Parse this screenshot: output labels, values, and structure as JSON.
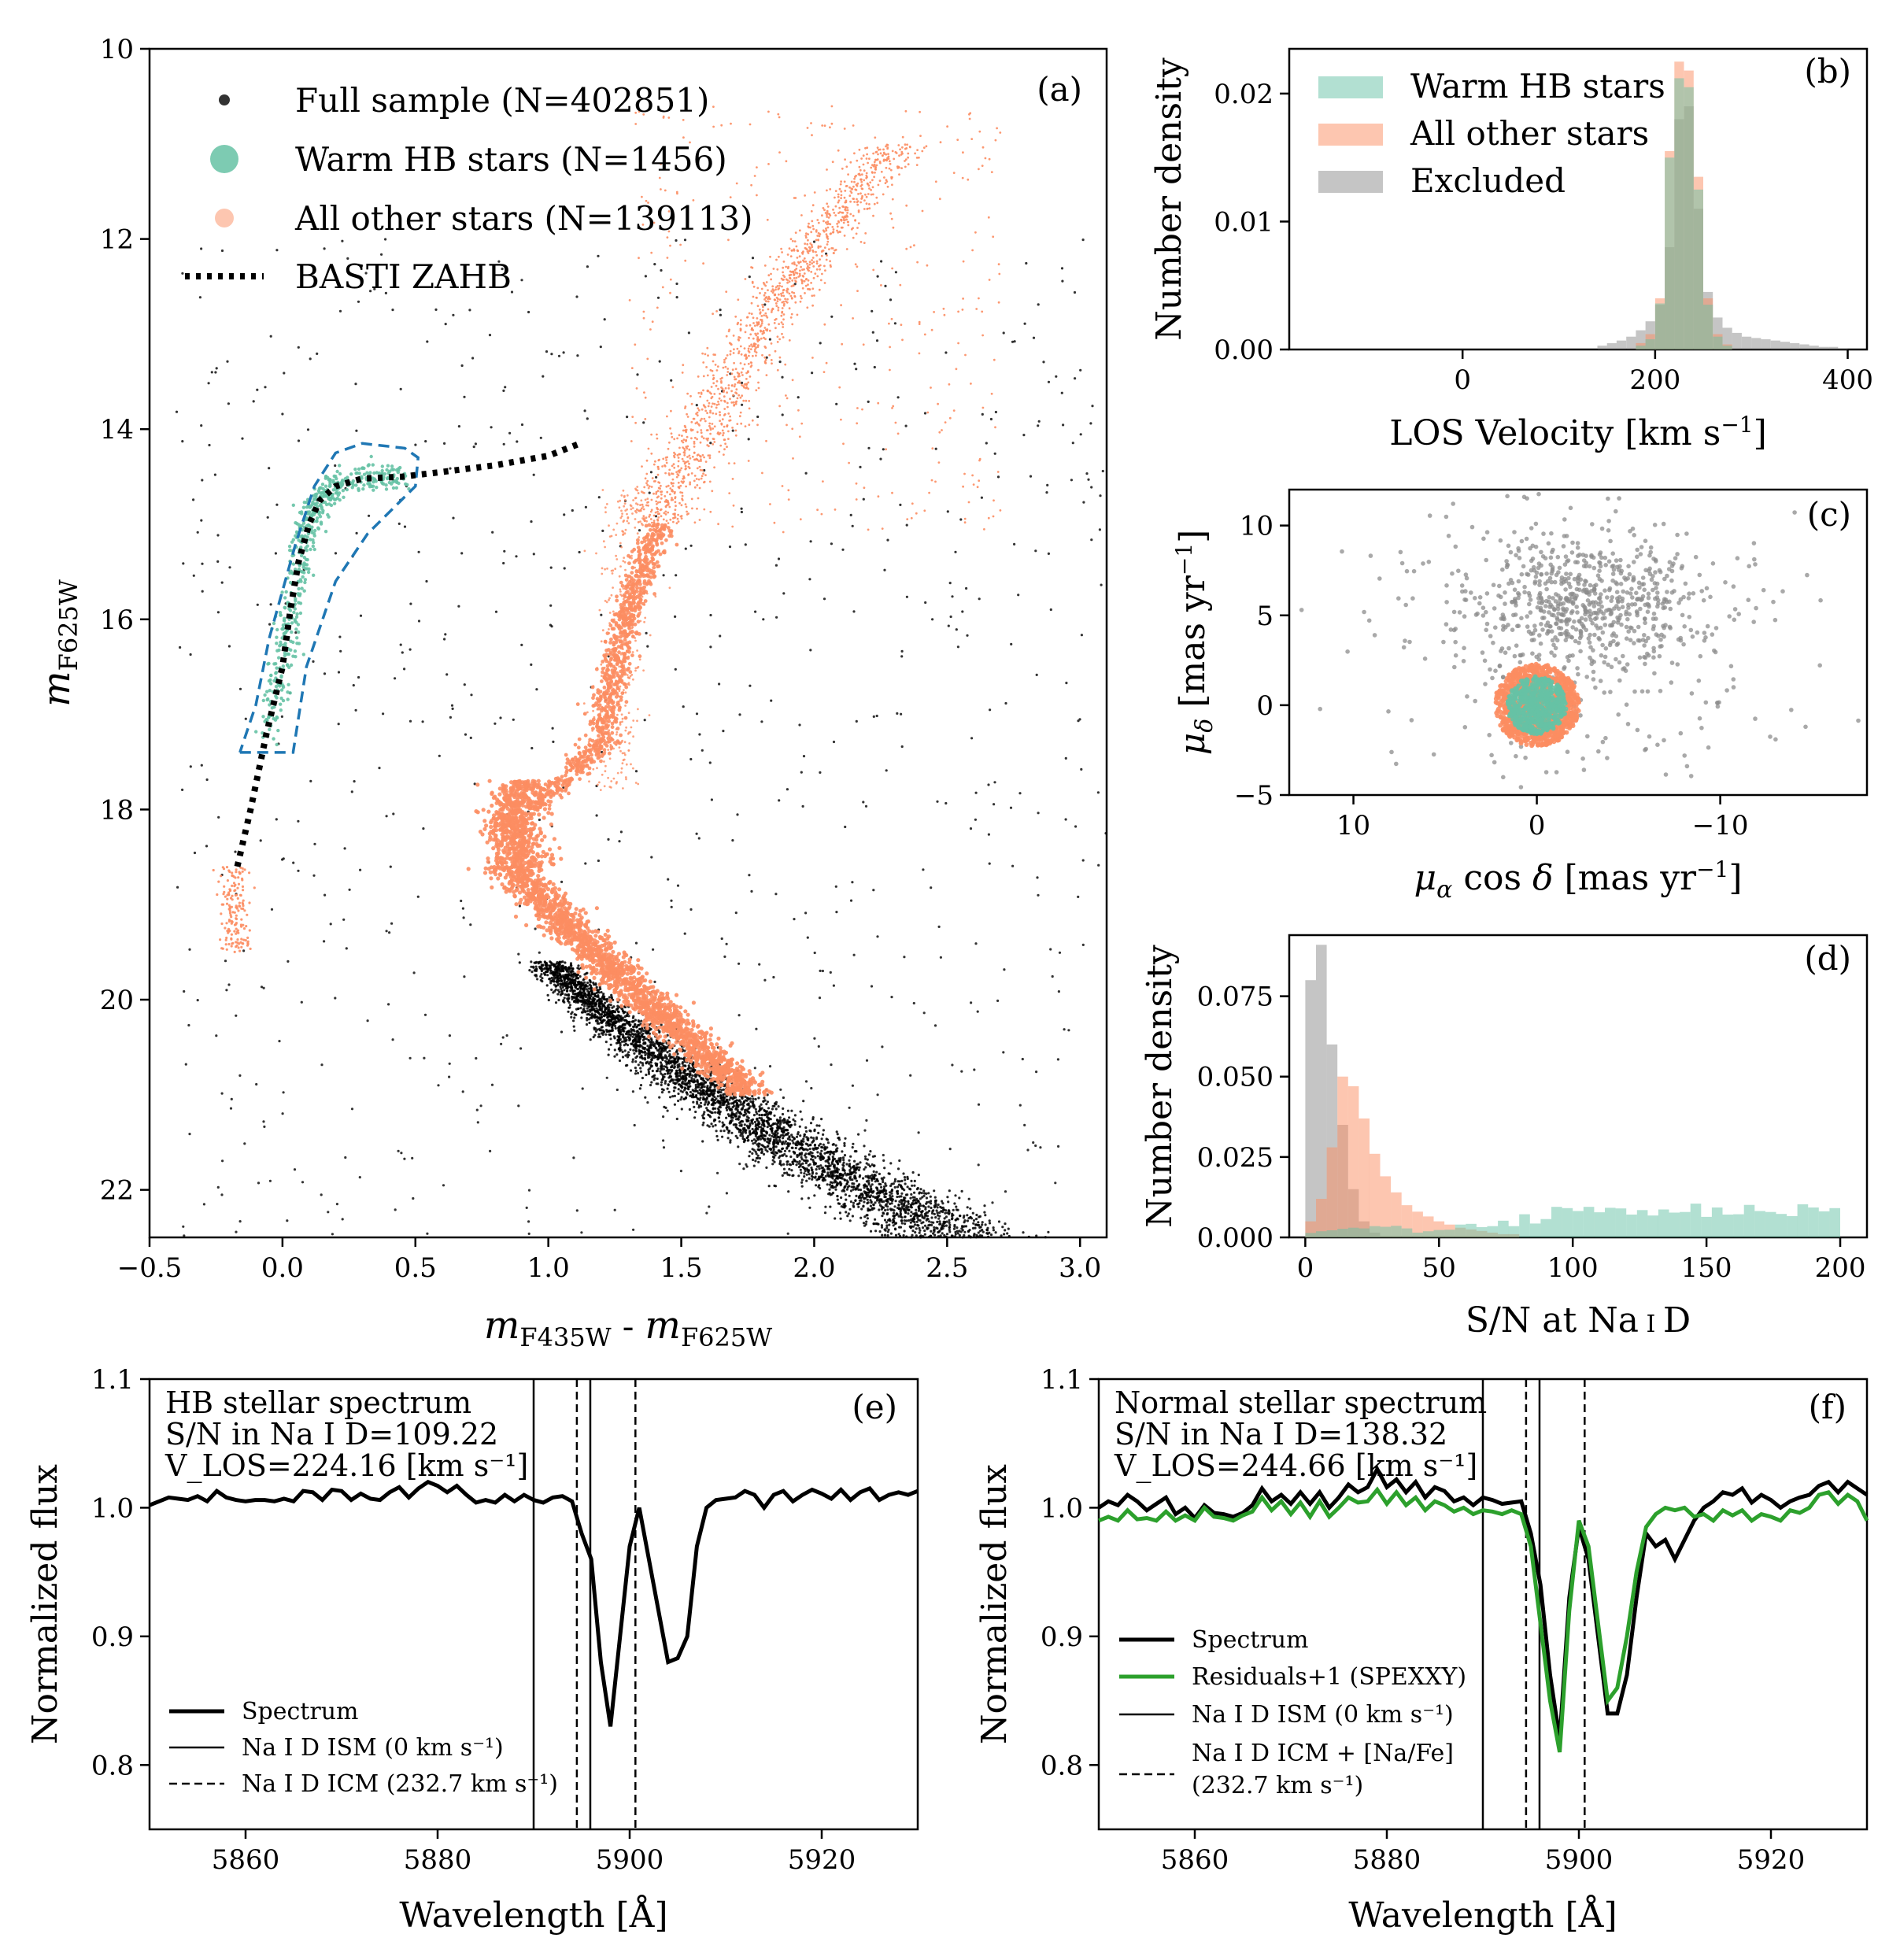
{
  "colors": {
    "warm_hb": "#66c2a5",
    "other": "#fc8d62",
    "excluded": "#8c8c8c",
    "full_sample": "#000000",
    "zahb": "#000000",
    "selection_box": "#1f77b4",
    "residuals": "#2ca02c"
  },
  "chart_data": [
    {
      "id": "a",
      "type": "scatter",
      "tag": "(a)",
      "xlabel": "m_F435W - m_F625W",
      "ylabel": "m_F625W",
      "xlim": [
        -0.5,
        3.1
      ],
      "ylim": [
        22.5,
        10
      ],
      "xticks": [
        -0.5,
        0.0,
        0.5,
        1.0,
        1.5,
        2.0,
        2.5,
        3.0
      ],
      "xtick_labels": [
        "−0.5",
        "0.0",
        "0.5",
        "1.0",
        "1.5",
        "2.0",
        "2.5",
        "3.0"
      ],
      "yticks": [
        10,
        12,
        14,
        16,
        18,
        20,
        22
      ],
      "ytick_labels": [
        "10",
        "12",
        "14",
        "16",
        "18",
        "20",
        "22"
      ],
      "legend": [
        "Full sample (N=402851)",
        "Warm HB stars (N=1456)",
        "All other stars (N=139113)",
        "BASTI ZAHB"
      ],
      "zahb": {
        "x": [
          -0.17,
          -0.12,
          -0.06,
          0.0,
          0.03,
          0.06,
          0.1,
          0.14,
          0.2,
          0.3,
          0.45,
          0.6,
          0.8,
          1.0,
          1.12
        ],
        "y": [
          18.6,
          18.0,
          17.2,
          16.5,
          15.9,
          15.4,
          15.0,
          14.75,
          14.6,
          14.52,
          14.5,
          14.45,
          14.38,
          14.28,
          14.15
        ]
      },
      "selection_box": {
        "x": [
          -0.16,
          0.04,
          0.09,
          0.2,
          0.32,
          0.5,
          0.51,
          0.46,
          0.3,
          0.2,
          0.12,
          0.05,
          -0.05,
          -0.1,
          -0.16
        ],
        "y": [
          17.4,
          17.4,
          16.5,
          15.6,
          15.1,
          14.6,
          14.3,
          14.2,
          14.15,
          14.25,
          14.6,
          15.2,
          16.2,
          16.9,
          17.4
        ]
      }
    },
    {
      "id": "b",
      "type": "bar",
      "tag": "(b)",
      "xlabel": "LOS Velocity [km s⁻¹]",
      "ylabel": "Number density",
      "xlim": [
        -180,
        420
      ],
      "ylim": [
        0,
        0.0235
      ],
      "xticks": [
        0,
        200,
        400
      ],
      "xtick_labels": [
        "0",
        "200",
        "400"
      ],
      "yticks": [
        0.0,
        0.01,
        0.02
      ],
      "ytick_labels": [
        "0.00",
        "0.01",
        "0.02"
      ],
      "legend": [
        "Warm HB stars",
        "All other stars",
        "Excluded"
      ],
      "bin_edges": [
        180,
        190,
        200,
        210,
        220,
        230,
        240,
        250,
        260,
        270,
        280
      ],
      "series": [
        {
          "name": "Excluded",
          "bin_edges": [
            140,
            150,
            160,
            170,
            180,
            190,
            200,
            210,
            220,
            230,
            240,
            250,
            260,
            270,
            280,
            290,
            300,
            310,
            320,
            330,
            340,
            350,
            360,
            370,
            380,
            390,
            400
          ],
          "values": [
            0.0003,
            0.0005,
            0.0007,
            0.001,
            0.0015,
            0.0022,
            0.0035,
            0.008,
            0.018,
            0.019,
            0.011,
            0.0045,
            0.0025,
            0.0017,
            0.0013,
            0.001,
            0.0009,
            0.0008,
            0.0007,
            0.0006,
            0.0005,
            0.0004,
            0.0003,
            0.0002,
            0.0002,
            0.0001
          ]
        },
        {
          "name": "All other stars",
          "values": [
            0.0005,
            0.0012,
            0.004,
            0.0155,
            0.0225,
            0.0218,
            0.0135,
            0.004,
            0.0012,
            0.0004
          ]
        },
        {
          "name": "Warm HB stars",
          "values": [
            0.0003,
            0.0008,
            0.0036,
            0.015,
            0.0212,
            0.0205,
            0.0125,
            0.0035,
            0.001,
            0.0003
          ]
        }
      ]
    },
    {
      "id": "c",
      "type": "scatter",
      "tag": "(c)",
      "xlabel": "μα cos δ [mas yr⁻¹]",
      "ylabel": "μδ [mas yr⁻¹]",
      "xlim": [
        13.5,
        -18
      ],
      "ylim": [
        -5,
        12
      ],
      "xticks": [
        10,
        0,
        -10
      ],
      "xtick_labels": [
        "10",
        "0",
        "−10"
      ],
      "yticks": [
        -5,
        0,
        5,
        10
      ],
      "ytick_labels": [
        "−5",
        "0",
        "5",
        "10"
      ],
      "other_radius": 2.3,
      "hb_radius": 1.6
    },
    {
      "id": "d",
      "type": "bar",
      "tag": "(d)",
      "xlabel": "S/N at Na I D",
      "ylabel": "Number density",
      "xlim": [
        -6,
        210
      ],
      "ylim": [
        0,
        0.094
      ],
      "xticks": [
        0,
        50,
        100,
        150,
        200
      ],
      "xtick_labels": [
        "0",
        "50",
        "100",
        "150",
        "200"
      ],
      "yticks": [
        0.0,
        0.025,
        0.05,
        0.075
      ],
      "ytick_labels": [
        "0.000",
        "0.025",
        "0.050",
        "0.075"
      ],
      "bin_width": 4,
      "series": [
        {
          "name": "Excluded",
          "values": [
            0.08,
            0.091,
            0.06,
            0.035,
            0.015,
            0.005,
            0.0015
          ]
        },
        {
          "name": "All other stars",
          "values": [
            0.005,
            0.012,
            0.028,
            0.05,
            0.047,
            0.037,
            0.026,
            0.019,
            0.014,
            0.01,
            0.008,
            0.0065,
            0.005,
            0.004,
            0.003,
            0.0025,
            0.002,
            0.0015,
            0.001,
            0.001
          ]
        },
        {
          "name": "Warm HB stars",
          "values": [
            0.0014,
            0.0019,
            0.0022,
            0.0027,
            0.003,
            0.0028,
            0.0035,
            0.0033,
            0.0036,
            0.0028,
            0.0015,
            0.0019,
            0.0023,
            0.0024,
            0.004,
            0.0042,
            0.0032,
            0.0035,
            0.0052,
            0.0035,
            0.0072,
            0.0043,
            0.0057,
            0.0095,
            0.0091,
            0.0082,
            0.0095,
            0.0078,
            0.0092,
            0.009,
            0.0071,
            0.0085,
            0.0068,
            0.0087,
            0.0077,
            0.0079,
            0.0105,
            0.0064,
            0.0093,
            0.0071,
            0.0072,
            0.0101,
            0.0082,
            0.0079,
            0.0073,
            0.0066,
            0.0103,
            0.0093,
            0.0081,
            0.0091
          ]
        }
      ]
    },
    {
      "id": "e",
      "type": "line",
      "tag": "(e)",
      "xlabel": "Wavelength [Å]",
      "ylabel": "Normalized flux",
      "xlim": [
        5850,
        5930
      ],
      "ylim": [
        0.75,
        1.1
      ],
      "xticks": [
        5860,
        5880,
        5900,
        5920
      ],
      "xtick_labels": [
        "5860",
        "5880",
        "5900",
        "5920"
      ],
      "yticks": [
        0.8,
        0.9,
        1.0,
        1.1
      ],
      "ytick_labels": [
        "0.8",
        "0.9",
        "1.0",
        "1.1"
      ],
      "annotation": [
        "HB stellar spectrum",
        "S/N in Na I D=109.22",
        "V_LOS=224.16 [km s⁻¹]"
      ],
      "legend": [
        "Spectrum",
        "Na I D ISM (0 km s⁻¹)",
        "Na I D ICM (232.7 km s⁻¹)"
      ],
      "ism_lines": [
        5890,
        5895.9
      ],
      "icm_lines": [
        5894.5,
        5900.6
      ],
      "x_start": 5850,
      "x_step": 1,
      "spectrum": [
        1.002,
        1.005,
        1.008,
        1.007,
        1.006,
        1.009,
        1.005,
        1.013,
        1.008,
        1.006,
        1.005,
        1.006,
        1.006,
        1.005,
        1.007,
        1.005,
        1.013,
        1.012,
        1.006,
        1.014,
        1.013,
        1.006,
        1.011,
        1.007,
        1.006,
        1.012,
        1.016,
        1.008,
        1.015,
        1.02,
        1.017,
        1.012,
        1.017,
        1.01,
        1.004,
        1.006,
        1.004,
        1.01,
        1.005,
        1.01,
        1.006,
        1.004,
        1.008,
        1.009,
        1.005,
        0.98,
        0.96,
        0.88,
        0.83,
        0.9,
        0.97,
        1.0,
        0.96,
        0.92,
        0.88,
        0.883,
        0.9,
        0.97,
        1.0,
        1.006,
        1.007,
        1.008,
        1.013,
        1.01,
        1.0,
        1.01,
        1.013,
        1.005,
        1.01,
        1.014,
        1.011,
        1.007,
        1.014,
        1.006,
        1.012,
        1.015,
        1.006,
        1.01,
        1.012,
        1.01,
        1.013
      ]
    },
    {
      "id": "f",
      "type": "line",
      "tag": "(f)",
      "xlabel": "Wavelength [Å]",
      "ylabel": "Normalized flux",
      "xlim": [
        5850,
        5930
      ],
      "ylim": [
        0.75,
        1.1
      ],
      "xticks": [
        5860,
        5880,
        5900,
        5920
      ],
      "xtick_labels": [
        "5860",
        "5880",
        "5900",
        "5920"
      ],
      "yticks": [
        0.8,
        0.9,
        1.0,
        1.1
      ],
      "ytick_labels": [
        "0.8",
        "0.9",
        "1.0",
        "1.1"
      ],
      "annotation": [
        "Normal stellar spectrum",
        "S/N in Na I D=138.32",
        "V_LOS=244.66 [km s⁻¹]"
      ],
      "legend": [
        "Spectrum",
        "Residuals+1 (SPEXXY)",
        "Na I D ISM (0 km s⁻¹)",
        "Na I D ICM + [Na/Fe]",
        "(232.7 km s⁻¹)"
      ],
      "ism_lines": [
        5890,
        5895.9
      ],
      "icm_lines": [
        5894.5,
        5900.6
      ],
      "x_start": 5850,
      "x_step": 1,
      "spectrum": [
        1.0,
        1.005,
        1.002,
        1.01,
        1.005,
        0.998,
        1.003,
        1.008,
        0.995,
        1.0,
        0.992,
        1.002,
        0.996,
        0.995,
        0.993,
        0.996,
        1.002,
        1.015,
        1.005,
        1.01,
        1.003,
        1.012,
        1.003,
        1.012,
        1.0,
        1.008,
        1.018,
        1.012,
        1.016,
        1.03,
        1.016,
        1.022,
        1.012,
        1.02,
        1.008,
        1.016,
        1.013,
        1.005,
        1.008,
        1.002,
        1.008,
        1.006,
        1.003,
        1.004,
        1.005,
        0.98,
        0.94,
        0.87,
        0.82,
        0.93,
        0.985,
        0.96,
        0.9,
        0.84,
        0.84,
        0.87,
        0.93,
        0.98,
        0.97,
        0.975,
        0.96,
        0.975,
        0.99,
        1.0,
        1.005,
        1.012,
        1.01,
        1.015,
        1.004,
        1.01,
        1.006,
        1.0,
        1.005,
        1.008,
        1.01,
        1.017,
        1.02,
        1.012,
        1.02,
        1.015,
        1.01
      ],
      "residuals": [
        0.99,
        0.993,
        0.99,
        0.998,
        0.991,
        0.992,
        0.99,
        0.997,
        0.99,
        0.994,
        0.99,
        1.0,
        0.993,
        0.992,
        0.99,
        0.994,
        0.997,
        1.008,
        0.998,
        1.005,
        0.995,
        1.004,
        0.993,
        1.005,
        0.993,
        1.0,
        1.008,
        1.004,
        1.005,
        1.014,
        1.003,
        1.012,
        1.002,
        1.008,
        0.998,
        1.005,
        1.002,
        0.997,
        1.0,
        0.995,
        0.998,
        0.997,
        0.995,
        0.998,
        0.995,
        0.97,
        0.91,
        0.85,
        0.81,
        0.92,
        0.99,
        0.97,
        0.91,
        0.85,
        0.86,
        0.9,
        0.95,
        0.985,
        0.995,
        1.0,
        0.998,
        1.0,
        0.993,
        0.995,
        0.99,
        0.998,
        0.994,
        0.998,
        0.99,
        0.995,
        0.993,
        0.99,
        0.998,
        0.996,
        1.0,
        1.01,
        1.012,
        1.003,
        1.01,
        1.005,
        0.99
      ]
    }
  ]
}
